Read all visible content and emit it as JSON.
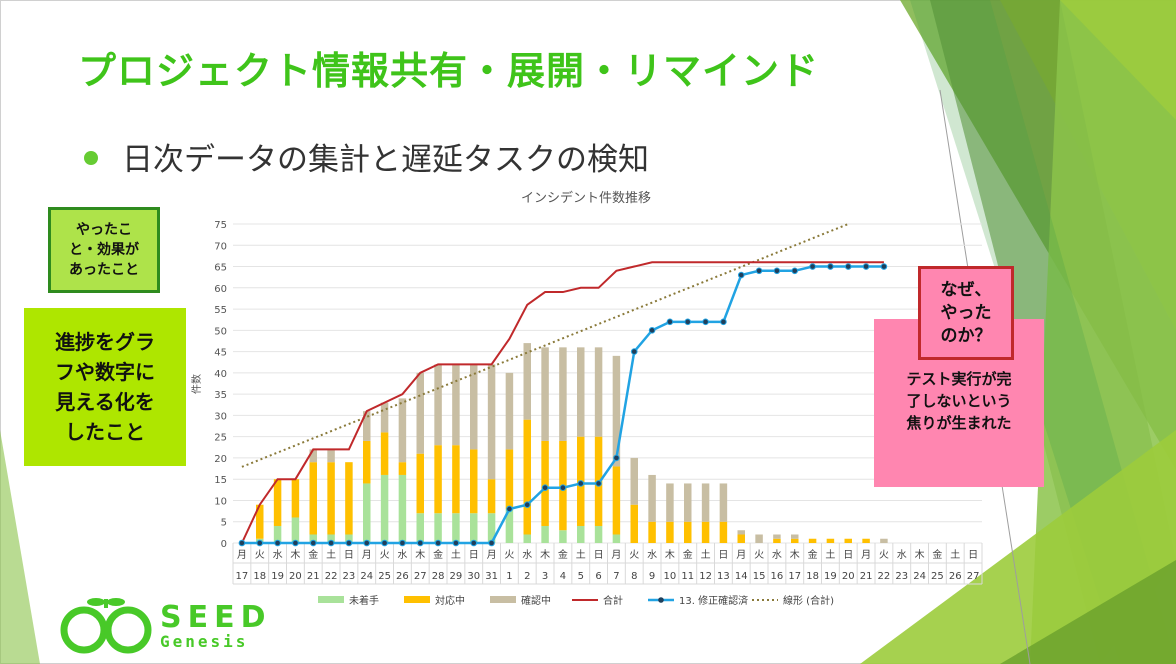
{
  "slide": {
    "title": "プロジェクト情報共有・展開・リマインド",
    "bullet": "日次データの集計と遅延タスクの検知"
  },
  "callouts": {
    "done_lines": [
      "やったこ",
      "と・効果が",
      "あったこと"
    ],
    "progress_lines": [
      "進捗をグラ",
      "フや数字に",
      "見える化を",
      "したこと"
    ],
    "why_lines": [
      "なぜ、",
      "やった",
      "のか？"
    ],
    "reason_lines": [
      "テスト実行が完",
      "了しないという",
      "焦りが生まれた"
    ]
  },
  "logo": {
    "word": "SEED",
    "sub": "Genesis"
  },
  "colors": {
    "title": "#3fc41a",
    "untouched": "#a9e29a",
    "in_progress": "#ffc000",
    "checking": "#c8bea3",
    "total": "#c0292b",
    "fixed": "#21a3e3",
    "trend": "#8a7a3a"
  },
  "chart_data": {
    "type": "bar",
    "title": "インシデント件数推移",
    "ylabel": "件数",
    "ylim": [
      0,
      75
    ],
    "yticks": [
      0,
      5,
      10,
      15,
      20,
      25,
      30,
      35,
      40,
      45,
      50,
      55,
      60,
      65,
      70,
      75
    ],
    "grid": true,
    "legend_position": "bottom",
    "weekdays": [
      "月",
      "火",
      "水",
      "木",
      "金",
      "土",
      "日",
      "月",
      "火",
      "水",
      "木",
      "金",
      "土",
      "日",
      "月",
      "火",
      "水",
      "木",
      "金",
      "土",
      "日",
      "月",
      "火",
      "水",
      "木",
      "金",
      "土",
      "日",
      "月",
      "火",
      "水",
      "木",
      "金",
      "土",
      "日",
      "月",
      "火",
      "水",
      "木",
      "金",
      "土",
      "日"
    ],
    "days": [
      "17",
      "18",
      "19",
      "20",
      "21",
      "22",
      "23",
      "24",
      "25",
      "26",
      "27",
      "28",
      "29",
      "30",
      "31",
      "1",
      "2",
      "3",
      "4",
      "5",
      "6",
      "7",
      "8",
      "9",
      "10",
      "11",
      "12",
      "13",
      "14",
      "15",
      "16",
      "17",
      "18",
      "19",
      "20",
      "21",
      "22",
      "23",
      "24",
      "25",
      "26",
      "27"
    ],
    "series": [
      {
        "name": "未着手",
        "kind": "stack",
        "values": [
          0,
          1,
          4,
          6,
          2,
          2,
          2,
          14,
          16,
          16,
          7,
          7,
          7,
          7,
          7,
          8,
          2,
          4,
          3,
          4,
          4,
          2,
          0,
          0,
          0,
          0,
          0,
          0,
          0,
          0,
          0,
          0,
          0,
          0,
          0,
          0,
          0,
          0,
          0,
          0,
          0,
          0
        ]
      },
      {
        "name": "対応中",
        "kind": "stack",
        "values": [
          0,
          8,
          11,
          9,
          17,
          17,
          17,
          10,
          10,
          3,
          14,
          16,
          16,
          15,
          8,
          14,
          27,
          20,
          21,
          21,
          21,
          16,
          9,
          5,
          5,
          5,
          5,
          5,
          2,
          0,
          1,
          1,
          1,
          1,
          1,
          1,
          0,
          0,
          0,
          0,
          0,
          0
        ]
      },
      {
        "name": "確認中",
        "kind": "stack",
        "values": [
          0,
          0,
          0,
          0,
          3,
          3,
          0,
          7,
          7,
          15,
          19,
          19,
          19,
          20,
          27,
          18,
          18,
          22,
          22,
          21,
          21,
          26,
          11,
          11,
          9,
          9,
          9,
          9,
          1,
          2,
          1,
          1,
          0,
          0,
          0,
          0,
          1,
          0,
          0,
          0,
          0,
          0
        ]
      },
      {
        "name": "合計",
        "kind": "line",
        "values": [
          0,
          9,
          15,
          15,
          22,
          22,
          22,
          31,
          33,
          35,
          40,
          42,
          42,
          42,
          42,
          48,
          56,
          59,
          59,
          60,
          60,
          64,
          65,
          66,
          66,
          66,
          66,
          66,
          66,
          66,
          66,
          66,
          66,
          66,
          66,
          66,
          66
        ]
      },
      {
        "name": "13. 修正確認済",
        "kind": "line-marker",
        "values": [
          0,
          0,
          0,
          0,
          0,
          0,
          0,
          0,
          0,
          0,
          0,
          0,
          0,
          0,
          0,
          8,
          9,
          13,
          13,
          14,
          14,
          20,
          45,
          50,
          52,
          52,
          52,
          52,
          63,
          64,
          64,
          64,
          65,
          65,
          65,
          65,
          65
        ]
      },
      {
        "name": "線形 (合計)",
        "kind": "trend",
        "values": [
          17.9,
          75
        ]
      }
    ]
  }
}
